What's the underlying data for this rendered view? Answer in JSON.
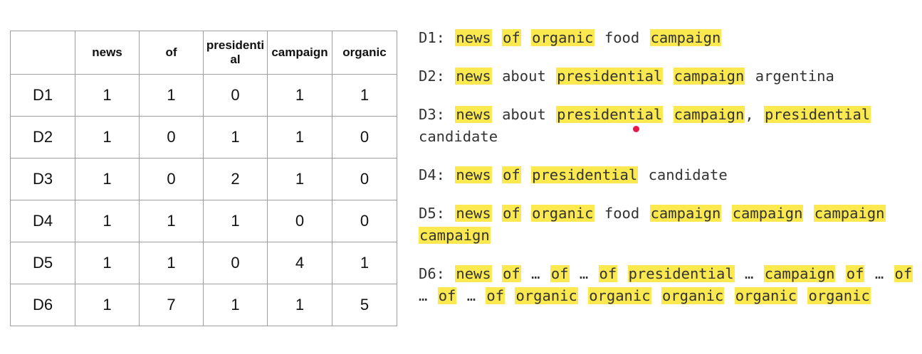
{
  "table": {
    "headers": [
      "",
      "news",
      "of",
      "presidential",
      "campaign",
      "organic"
    ],
    "rows": [
      {
        "doc": "D1",
        "values": [
          "1",
          "1",
          "0",
          "1",
          "1"
        ]
      },
      {
        "doc": "D2",
        "values": [
          "1",
          "0",
          "1",
          "1",
          "0"
        ]
      },
      {
        "doc": "D3",
        "values": [
          "1",
          "0",
          "2",
          "1",
          "0"
        ]
      },
      {
        "doc": "D4",
        "values": [
          "1",
          "1",
          "1",
          "0",
          "0"
        ]
      },
      {
        "doc": "D5",
        "values": [
          "1",
          "1",
          "0",
          "4",
          "1"
        ]
      },
      {
        "doc": "D6",
        "values": [
          "1",
          "7",
          "1",
          "1",
          "5"
        ]
      }
    ]
  },
  "highlight_color": "#fbe94f",
  "cursor_color": "#e8194a",
  "documents": [
    {
      "label": "D1:",
      "tokens": [
        {
          "t": "news",
          "hl": true
        },
        {
          "t": "of",
          "hl": true
        },
        {
          "t": "organic",
          "hl": true
        },
        {
          "t": "food",
          "hl": false
        },
        {
          "t": "campaign",
          "hl": true
        }
      ]
    },
    {
      "label": "D2:",
      "tokens": [
        {
          "t": "news",
          "hl": true
        },
        {
          "t": "about",
          "hl": false
        },
        {
          "t": "presidential",
          "hl": true
        },
        {
          "t": "campaign",
          "hl": true
        },
        {
          "t": "argentina",
          "hl": false
        }
      ]
    },
    {
      "label": "D3:",
      "tokens": [
        {
          "t": "news",
          "hl": true
        },
        {
          "t": "about",
          "hl": false
        },
        {
          "t": "presidential",
          "hl": true
        },
        {
          "t": "campaign",
          "hl": true,
          "suffix": ","
        },
        {
          "t": "presidential",
          "hl": true
        },
        {
          "t": "candidate",
          "hl": false
        }
      ]
    },
    {
      "label": "D4:",
      "tokens": [
        {
          "t": "news",
          "hl": true
        },
        {
          "t": "of",
          "hl": true
        },
        {
          "t": "presidential",
          "hl": true
        },
        {
          "t": "candidate",
          "hl": false
        }
      ]
    },
    {
      "label": "D5:",
      "tokens": [
        {
          "t": "news",
          "hl": true
        },
        {
          "t": "of",
          "hl": true
        },
        {
          "t": "organic",
          "hl": true
        },
        {
          "t": "food",
          "hl": false
        },
        {
          "t": "campaign",
          "hl": true
        },
        {
          "t": "campaign",
          "hl": true
        },
        {
          "t": "campaign",
          "hl": true
        },
        {
          "t": "campaign",
          "hl": true
        }
      ]
    },
    {
      "label": "D6:",
      "tokens": [
        {
          "t": "news",
          "hl": true
        },
        {
          "t": "of",
          "hl": true
        },
        {
          "t": "…",
          "hl": false
        },
        {
          "t": "of",
          "hl": true
        },
        {
          "t": "…",
          "hl": false
        },
        {
          "t": "of",
          "hl": true
        },
        {
          "t": "presidential",
          "hl": true
        },
        {
          "t": "…",
          "hl": false
        },
        {
          "t": "campaign",
          "hl": true
        },
        {
          "t": "of",
          "hl": true
        },
        {
          "t": "…",
          "hl": false
        },
        {
          "t": "of",
          "hl": true
        },
        {
          "t": "…",
          "hl": false
        },
        {
          "t": "of",
          "hl": true
        },
        {
          "t": "…",
          "hl": false
        },
        {
          "t": "of",
          "hl": true
        },
        {
          "t": "organic",
          "hl": true
        },
        {
          "t": "organic",
          "hl": true
        },
        {
          "t": "organic",
          "hl": true
        },
        {
          "t": "organic",
          "hl": true
        },
        {
          "t": "organic",
          "hl": true
        }
      ]
    }
  ]
}
